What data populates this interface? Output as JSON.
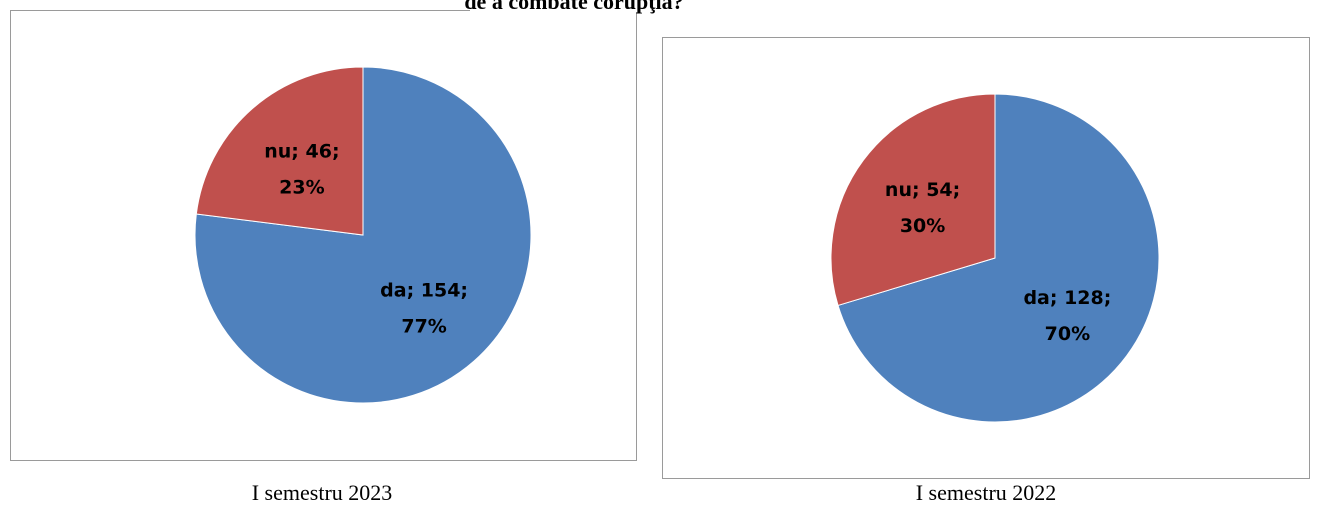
{
  "title": "de a combate corupţia?",
  "chart_data": [
    {
      "type": "pie",
      "caption": "I semestru 2023",
      "categories": [
        "da",
        "nu"
      ],
      "values": [
        154,
        46
      ],
      "value_labels": [
        "da; 154; 77%",
        "nu; 46; 23%"
      ],
      "colors": [
        "#4f81bd",
        "#c0504d"
      ]
    },
    {
      "type": "pie",
      "caption": "I semestru 2022",
      "categories": [
        "da",
        "nu"
      ],
      "values": [
        128,
        54
      ],
      "value_labels": [
        "da; 128; 70%",
        "nu; 54; 30%"
      ],
      "colors": [
        "#4f81bd",
        "#c0504d"
      ]
    }
  ]
}
